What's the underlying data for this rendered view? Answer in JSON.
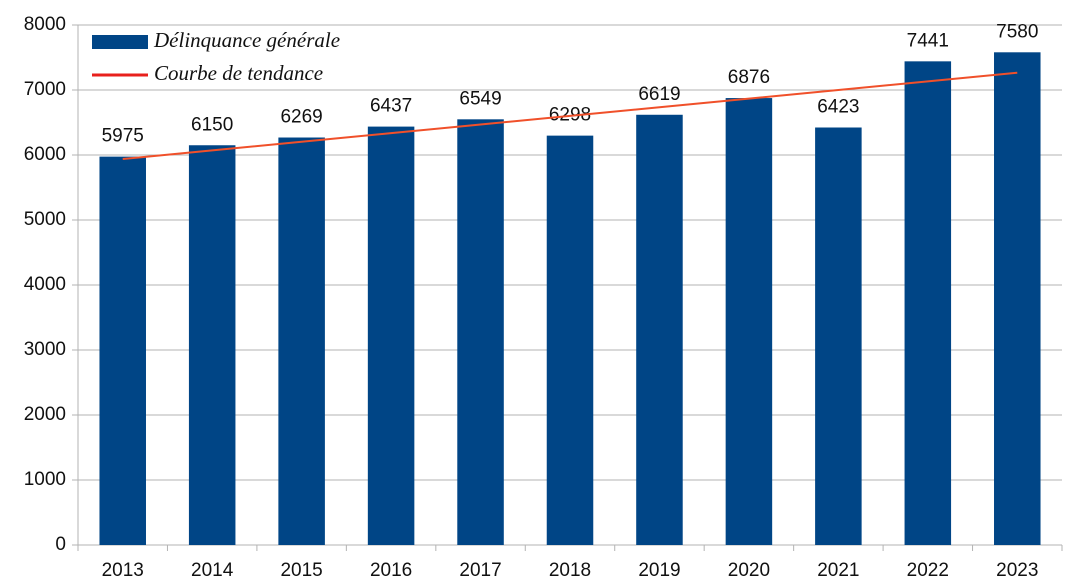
{
  "chart_data": {
    "type": "bar",
    "categories": [
      "2013",
      "2014",
      "2015",
      "2016",
      "2017",
      "2018",
      "2019",
      "2020",
      "2021",
      "2022",
      "2023"
    ],
    "series": [
      {
        "name": "Délinquance générale",
        "color": "#004586",
        "values": [
          5975,
          6150,
          6269,
          6437,
          6549,
          6298,
          6619,
          6876,
          6423,
          7441,
          7580
        ]
      },
      {
        "name": "Courbe de tendance",
        "color": "#f0502a",
        "type": "line",
        "values": [
          5938,
          6071,
          6204,
          6336,
          6469,
          6602,
          6734,
          6867,
          7000,
          7132,
          7265
        ]
      }
    ],
    "ylim": [
      0,
      8000
    ],
    "yticks": [
      0,
      1000,
      2000,
      3000,
      4000,
      5000,
      6000,
      7000,
      8000
    ],
    "grid": true,
    "legend": "top-left",
    "data_labels": true
  }
}
